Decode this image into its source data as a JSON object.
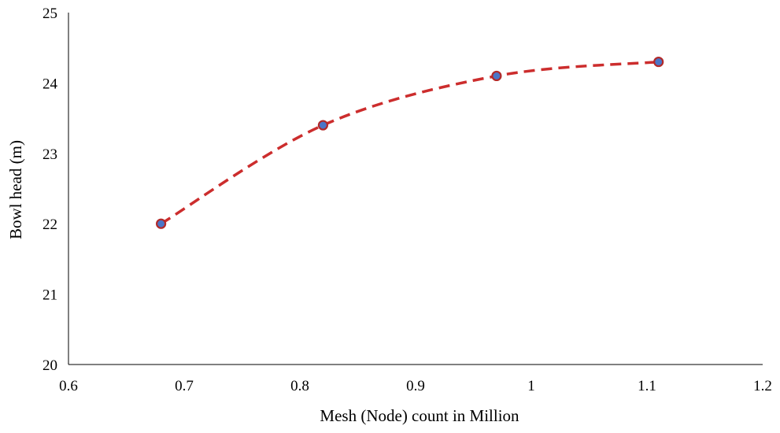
{
  "chart_data": {
    "type": "line",
    "title": "",
    "xlabel": "Mesh (Node)  count in Million",
    "ylabel": "Bowl  head (m)",
    "xlim": [
      0.6,
      1.2
    ],
    "ylim": [
      20,
      25
    ],
    "x_ticks": [
      0.6,
      0.7,
      0.8,
      0.9,
      1.0,
      1.1,
      1.2
    ],
    "x_tick_labels": [
      "0.6",
      "0.7",
      "0.8",
      "0.9",
      "1",
      "1.1",
      "1.2"
    ],
    "y_ticks": [
      20,
      21,
      22,
      23,
      24,
      25
    ],
    "y_tick_labels": [
      "20",
      "21",
      "22",
      "23",
      "24",
      "25"
    ],
    "grid": false,
    "legend": "none",
    "series": [
      {
        "x": [
          0.68,
          0.82,
          0.97,
          1.11
        ],
        "y": [
          22.0,
          23.4,
          24.1,
          24.3
        ],
        "line_style": "dashed",
        "smooth": true,
        "line_color": "#cc2d2d",
        "marker": "circle",
        "marker_fill": "#4a76c8",
        "marker_edge": "#b22a2a"
      }
    ]
  }
}
